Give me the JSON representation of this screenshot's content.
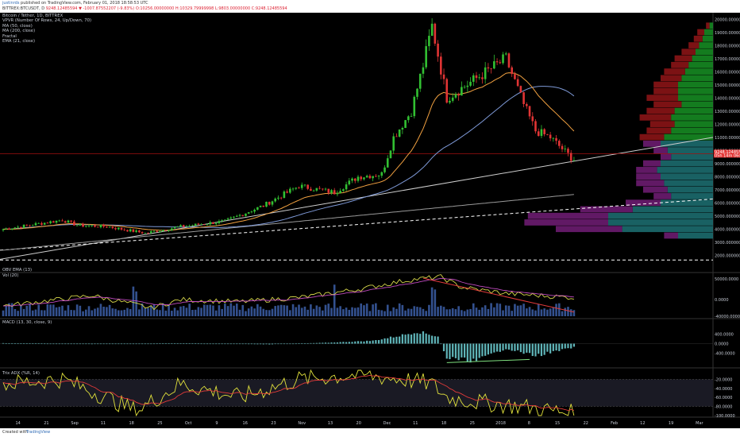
{
  "header": {
    "author": "justinrds",
    "published": "published on TradingView.com, February 01, 2018 18:58:53 UTC",
    "symbol_line": "BITTREX:BTCUSDT, D",
    "price_summary": "9248.12485594 ▼ -1007.87552207 (-9.83%) O:10256.00000000 H:10329.79999998 L:9803.00000000 C:9248.12485594"
  },
  "legend": {
    "title": "Bitcoin / Tether, 1D, BITTREX",
    "items": [
      "VPVR (Number Of Rows, 24, Up/Down, 70)",
      "MA (50, close)",
      "MA (200, close)",
      "Fractal",
      "EMA (21, close)"
    ]
  },
  "panes": {
    "obv_label": "OBV EMA (13)",
    "vol_label": "Vol (20)",
    "macd_label": "MACD (13, 30, close, 9)",
    "wr_label": "Trix ADX (%R, 14)"
  },
  "footer": {
    "left": "Created with",
    "brand": "TradingView"
  },
  "colors": {
    "up": "#32c032",
    "down": "#e03434",
    "ema21": "#f0a040",
    "ma50": "#7f9ad8",
    "ma200": "#9a9a9a",
    "vp_up": "#1c6b6e",
    "vp_down": "#6c1c70",
    "vp_up_hi": "#168a22",
    "vp_down_hi": "#8a1416",
    "obv": "#d8d84a",
    "macd_hist": "#5fb4b8",
    "wr": "#e2e23c",
    "wr_ma": "#e23a3a"
  },
  "chart_data": [
    {
      "type": "candlestick",
      "title": "Bitcoin / Tether, 1D, BITTREX",
      "y_unit": "USDT",
      "ylim": [
        0,
        20000
      ],
      "y_ticks": [
        "2000.00000000",
        "3000.00000000",
        "4000.00000000",
        "5000.00000000",
        "6000.00000000",
        "7000.00000000",
        "8000.00000000",
        "9000.00000000",
        "10000.00000000",
        "11000.00000000",
        "12000.00000000",
        "13000.00000000",
        "14000.00000000",
        "15000.00000000",
        "16000.00000000",
        "17000.00000000",
        "18000.00000000",
        "19000.00000000",
        "20000.00000000"
      ],
      "x_ticks": [
        "14",
        "21",
        "Sep",
        "11",
        "18",
        "25",
        "Oct",
        "9",
        "16",
        "23",
        "Nov",
        "13",
        "20",
        "Dec",
        "11",
        "18",
        "25",
        "2018",
        "8",
        "15",
        "22",
        "Feb",
        "12",
        "19",
        "Mar"
      ],
      "last_price_label": "9248.12485594",
      "last_price_sub": "05h 14m 06s",
      "close_keypoints": {
        "day": [
          0,
          20,
          25,
          35,
          48,
          60,
          75,
          88,
          100,
          112,
          120,
          128,
          132,
          138,
          142,
          145,
          150,
          160,
          170,
          176,
          180,
          185,
          193
        ],
        "close": [
          4000,
          4700,
          4300,
          4200,
          3700,
          4200,
          4600,
          5800,
          7300,
          6800,
          8000,
          8200,
          11000,
          13000,
          16500,
          19500,
          14000,
          15500,
          17000,
          13500,
          11500,
          11000,
          9248
        ]
      },
      "series_names": [
        "MA (50, close)",
        "MA (200, close)",
        "EMA (21, close)"
      ]
    },
    {
      "type": "volume_profile",
      "price_levels": [
        19500,
        19000,
        18500,
        18000,
        17500,
        17000,
        16500,
        16000,
        15500,
        15000,
        14500,
        14000,
        13500,
        13000,
        12500,
        12000,
        11500,
        11000,
        10500,
        10000,
        9500,
        9000,
        8500,
        8000,
        7500,
        7000,
        6500,
        6000,
        5500,
        5000,
        4500,
        4000,
        3500
      ],
      "up_volume": [
        0.02,
        0.05,
        0.06,
        0.08,
        0.1,
        0.12,
        0.14,
        0.16,
        0.18,
        0.2,
        0.2,
        0.2,
        0.18,
        0.22,
        0.24,
        0.22,
        0.24,
        0.28,
        0.3,
        0.26,
        0.24,
        0.3,
        0.32,
        0.3,
        0.28,
        0.26,
        0.24,
        0.3,
        0.46,
        0.6,
        0.6,
        0.52,
        0.2
      ],
      "down_volume": [
        0.02,
        0.04,
        0.05,
        0.06,
        0.08,
        0.1,
        0.1,
        0.12,
        0.12,
        0.14,
        0.14,
        0.18,
        0.16,
        0.16,
        0.18,
        0.14,
        0.14,
        0.14,
        0.1,
        0.08,
        0.06,
        0.1,
        0.12,
        0.14,
        0.16,
        0.14,
        0.1,
        0.2,
        0.3,
        0.46,
        0.48,
        0.38,
        0.08
      ]
    },
    {
      "type": "line",
      "name": "OBV EMA (13)",
      "ylim": [
        -40000,
        60000
      ],
      "y_ticks": [
        "50000.0000",
        "0.0000",
        "-40000.0000"
      ],
      "keypoints_day": [
        0,
        30,
        50,
        60,
        80,
        100,
        120,
        135,
        140,
        148,
        155,
        170,
        193
      ],
      "keypoints_val": [
        -15000,
        10000,
        -20000,
        0,
        -5000,
        5000,
        25000,
        45000,
        50000,
        55000,
        30000,
        15000,
        5000
      ]
    },
    {
      "type": "histogram",
      "name": "MACD (13, 30, close, 9)",
      "ylim": [
        -900,
        900
      ],
      "y_ticks": [
        "400.0000",
        "0.0000",
        "-400.0000"
      ],
      "keypoints_day": [
        0,
        30,
        60,
        90,
        110,
        125,
        135,
        140,
        147,
        150,
        160,
        170,
        180,
        193
      ],
      "keypoints_val": [
        20,
        -20,
        10,
        -30,
        40,
        120,
        350,
        500,
        300,
        -600,
        -700,
        -200,
        -500,
        -150
      ]
    },
    {
      "type": "line",
      "name": "Williams %R",
      "ylim": [
        -100,
        0
      ],
      "y_ticks": [
        "-20.0000",
        "-40.0000",
        "-60.0000",
        "-80.0000",
        "-100.0000"
      ],
      "keypoints_day": [
        0,
        20,
        35,
        45,
        60,
        80,
        100,
        120,
        135,
        145,
        150,
        160,
        175,
        193
      ],
      "keypoints_val": [
        -30,
        -20,
        -60,
        -90,
        -30,
        -60,
        -20,
        -10,
        -20,
        -30,
        -60,
        -70,
        -80,
        -95
      ]
    }
  ]
}
